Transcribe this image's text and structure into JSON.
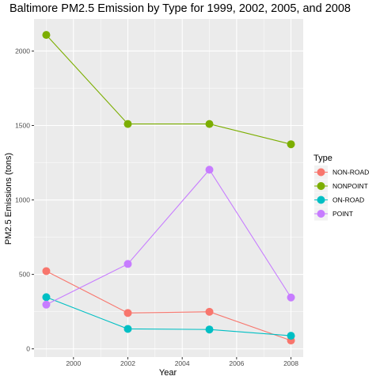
{
  "chart_data": {
    "type": "line",
    "title": "Baltimore PM2.5 Emission by Type for 1999, 2002, 2005, and 2008",
    "xlabel": "Year",
    "ylabel": "PM2.5 Emissions (tons)",
    "xlim": [
      1998.55,
      2008.45
    ],
    "ylim": [
      -55,
      2215
    ],
    "x_ticks": [
      2000,
      2002,
      2004,
      2006,
      2008
    ],
    "y_ticks": [
      0,
      500,
      1000,
      1500,
      2000
    ],
    "grid": true,
    "legend": {
      "title": "Type",
      "placement": "right"
    },
    "series": [
      {
        "name": "NON-ROAD",
        "color": "#F8766D",
        "x": [
          1999,
          2002,
          2005,
          2008
        ],
        "y": [
          522,
          241,
          249,
          56
        ]
      },
      {
        "name": "NONPOINT",
        "color": "#7CAE00",
        "x": [
          1999,
          2002,
          2005,
          2008
        ],
        "y": [
          2108,
          1510,
          1510,
          1374
        ]
      },
      {
        "name": "ON-ROAD",
        "color": "#00BFC4",
        "x": [
          1999,
          2002,
          2005,
          2008
        ],
        "y": [
          347,
          134,
          130,
          88
        ]
      },
      {
        "name": "POINT",
        "color": "#C77CFF",
        "x": [
          1999,
          2002,
          2005,
          2008
        ],
        "y": [
          297,
          570,
          1203,
          345
        ]
      }
    ]
  }
}
